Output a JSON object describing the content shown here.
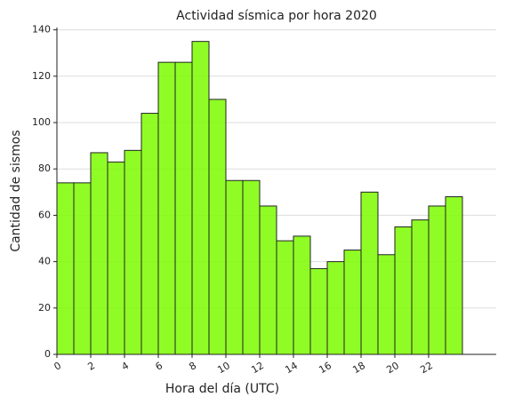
{
  "chart_data": {
    "type": "histogram",
    "title": "Actividad sísmica por hora 2020",
    "xlabel": "Hora del día (UTC)",
    "ylabel": "Cantidad de sismos",
    "bins": [
      0,
      1,
      2,
      3,
      4,
      5,
      6,
      7,
      8,
      9,
      10,
      11,
      12,
      13,
      14,
      15,
      16,
      17,
      18,
      19,
      20,
      21,
      22,
      23,
      24
    ],
    "values": [
      74,
      74,
      87,
      83,
      88,
      104,
      126,
      126,
      135,
      110,
      75,
      75,
      64,
      49,
      51,
      37,
      40,
      45,
      70,
      43,
      55,
      58,
      64,
      68
    ],
    "color": "#7cfc00",
    "edgecolor": "#222222",
    "xlim": [
      0,
      26
    ],
    "xticks": [
      0,
      2,
      4,
      6,
      8,
      10,
      12,
      14,
      16,
      18,
      20,
      22
    ],
    "ylim": [
      0,
      141
    ],
    "yticks": [
      0,
      20,
      40,
      60,
      80,
      100,
      120,
      140
    ],
    "grid": true
  }
}
